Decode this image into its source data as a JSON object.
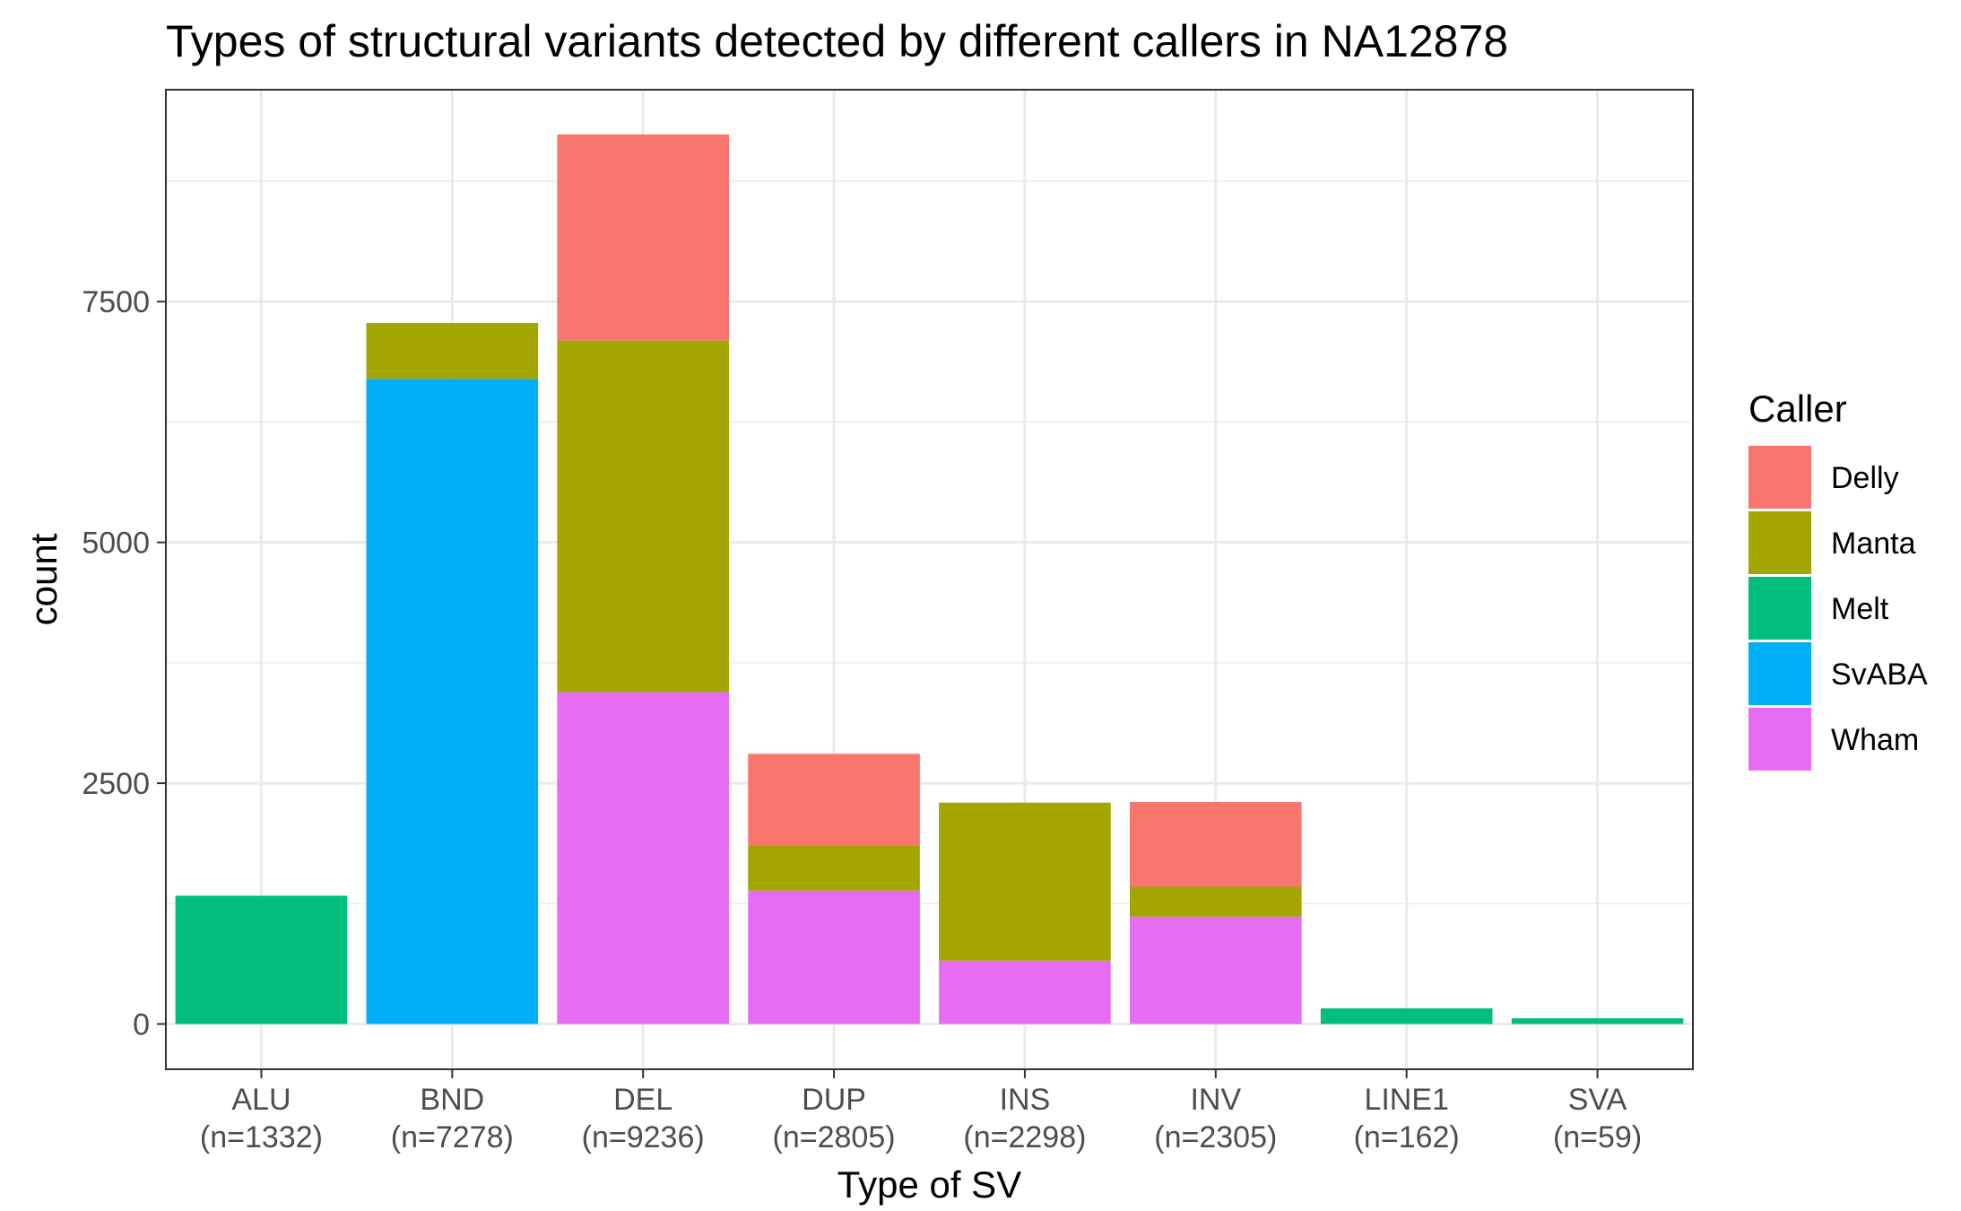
{
  "chart_data": {
    "type": "bar",
    "stacked": true,
    "title": "Types of structural variants detected by different callers in NA12878",
    "xlabel": "Type of SV",
    "ylabel": "count",
    "categories": [
      "ALU",
      "BND",
      "DEL",
      "DUP",
      "INS",
      "INV",
      "LINE1",
      "SVA"
    ],
    "category_counts": [
      "(n=1332)",
      "(n=7278)",
      "(n=9236)",
      "(n=2805)",
      "(n=2298)",
      "(n=2305)",
      "(n=162)",
      "(n=59)"
    ],
    "series": [
      {
        "name": "Delly",
        "color": "#F8766D",
        "values": [
          0,
          0,
          2140,
          950,
          0,
          880,
          0,
          0
        ]
      },
      {
        "name": "Manta",
        "color": "#A3A500",
        "values": [
          0,
          580,
          3650,
          470,
          1640,
          310,
          0,
          0
        ]
      },
      {
        "name": "Melt",
        "color": "#00BF7D",
        "values": [
          1332,
          0,
          0,
          0,
          0,
          0,
          162,
          59
        ]
      },
      {
        "name": "SvABA",
        "color": "#00B0F6",
        "values": [
          0,
          6698,
          0,
          0,
          0,
          0,
          0,
          0
        ]
      },
      {
        "name": "Wham",
        "color": "#E76BF3",
        "values": [
          0,
          0,
          3446,
          1385,
          658,
          1115,
          0,
          0
        ]
      }
    ],
    "stack_order_bottom_to_top": [
      "Wham",
      "SvABA",
      "Melt",
      "Manta",
      "Delly"
    ],
    "yticks": [
      0,
      2500,
      5000,
      7500
    ],
    "yticks_labels": [
      "0",
      "2500",
      "5000",
      "7500"
    ],
    "ylim": [
      -470,
      9700
    ],
    "grid": true,
    "legend": {
      "title": "Caller",
      "position": "right"
    }
  }
}
